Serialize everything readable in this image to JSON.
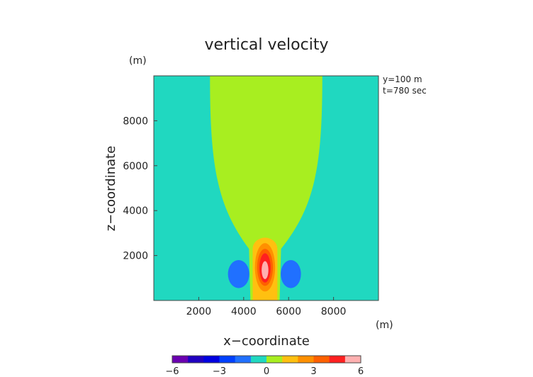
{
  "chart_data": {
    "type": "heatmap",
    "title": "vertical velocity",
    "xlabel": "x−coordinate",
    "ylabel": "z−coordinate",
    "x_unit": "(m)",
    "y_unit": "(m)",
    "annotations": [
      "y=100  m",
      "t=780 sec"
    ],
    "xlim": [
      0,
      10000
    ],
    "ylim": [
      0,
      10000
    ],
    "xticks": [
      2000,
      4000,
      6000,
      8000
    ],
    "yticks": [
      2000,
      4000,
      6000,
      8000
    ],
    "xtick_labels": [
      "2000",
      "4000",
      "6000",
      "8000"
    ],
    "ytick_labels": [
      "2000",
      "4000",
      "6000",
      "8000"
    ],
    "grid": false,
    "colorbar": {
      "range": [
        -6,
        6
      ],
      "levels": [
        -6,
        -5,
        -4,
        -3,
        -2,
        -1,
        0,
        1,
        2,
        3,
        4,
        5,
        6
      ],
      "tick_values": [
        -6,
        -3,
        0,
        3,
        6
      ],
      "tick_labels": [
        "−6",
        "−3",
        "0",
        "3",
        "6"
      ],
      "colors": [
        "#6a00b0",
        "#2000c0",
        "#0000e0",
        "#0040ff",
        "#2070ff",
        "#20d8c0",
        "#a8ee20",
        "#ffc010",
        "#ff9000",
        "#ff6000",
        "#ff2020",
        "#ffb0b0"
      ]
    },
    "background_value_range": [
      -1,
      0
    ],
    "regions": [
      {
        "name": "downdraft-shell",
        "value_range": [
          0,
          1
        ],
        "color": "#a8ee20",
        "top_x_range": [
          2500,
          7500
        ],
        "bottom_x_range": [
          4300,
          5600
        ]
      },
      {
        "name": "updraft-core",
        "value_range": [
          1,
          6
        ],
        "center": [
          4950,
          1350
        ],
        "contours": [
          {
            "value_range": [
              1,
              2
            ],
            "color": "#ffc010",
            "x_range": [
              4400,
              5500
            ],
            "z_range": [
              0,
              2850
            ]
          },
          {
            "value_range": [
              2,
              3
            ],
            "color": "#ff9000",
            "x_range": [
              4500,
              5400
            ],
            "z_range": [
              400,
              2550
            ]
          },
          {
            "value_range": [
              3,
              4
            ],
            "color": "#ff6000",
            "x_range": [
              4600,
              5300
            ],
            "z_range": [
              650,
              2300
            ]
          },
          {
            "value_range": [
              4,
              5
            ],
            "color": "#ff2020",
            "x_range": [
              4700,
              5200
            ],
            "z_range": [
              800,
              2100
            ]
          },
          {
            "value_range": [
              5,
              6
            ],
            "color": "#ffb0b0",
            "x_range": [
              4800,
              5100
            ],
            "z_range": [
              950,
              1750
            ]
          }
        ]
      },
      {
        "name": "left-downdraft-lobe",
        "value_range": [
          -2,
          -1
        ],
        "color": "#2070ff",
        "x_range": [
          3300,
          4250
        ],
        "z_range": [
          550,
          1800
        ]
      },
      {
        "name": "right-downdraft-lobe",
        "value_range": [
          -2,
          -1
        ],
        "color": "#2070ff",
        "x_range": [
          5650,
          6550
        ],
        "z_range": [
          550,
          1800
        ]
      }
    ]
  }
}
